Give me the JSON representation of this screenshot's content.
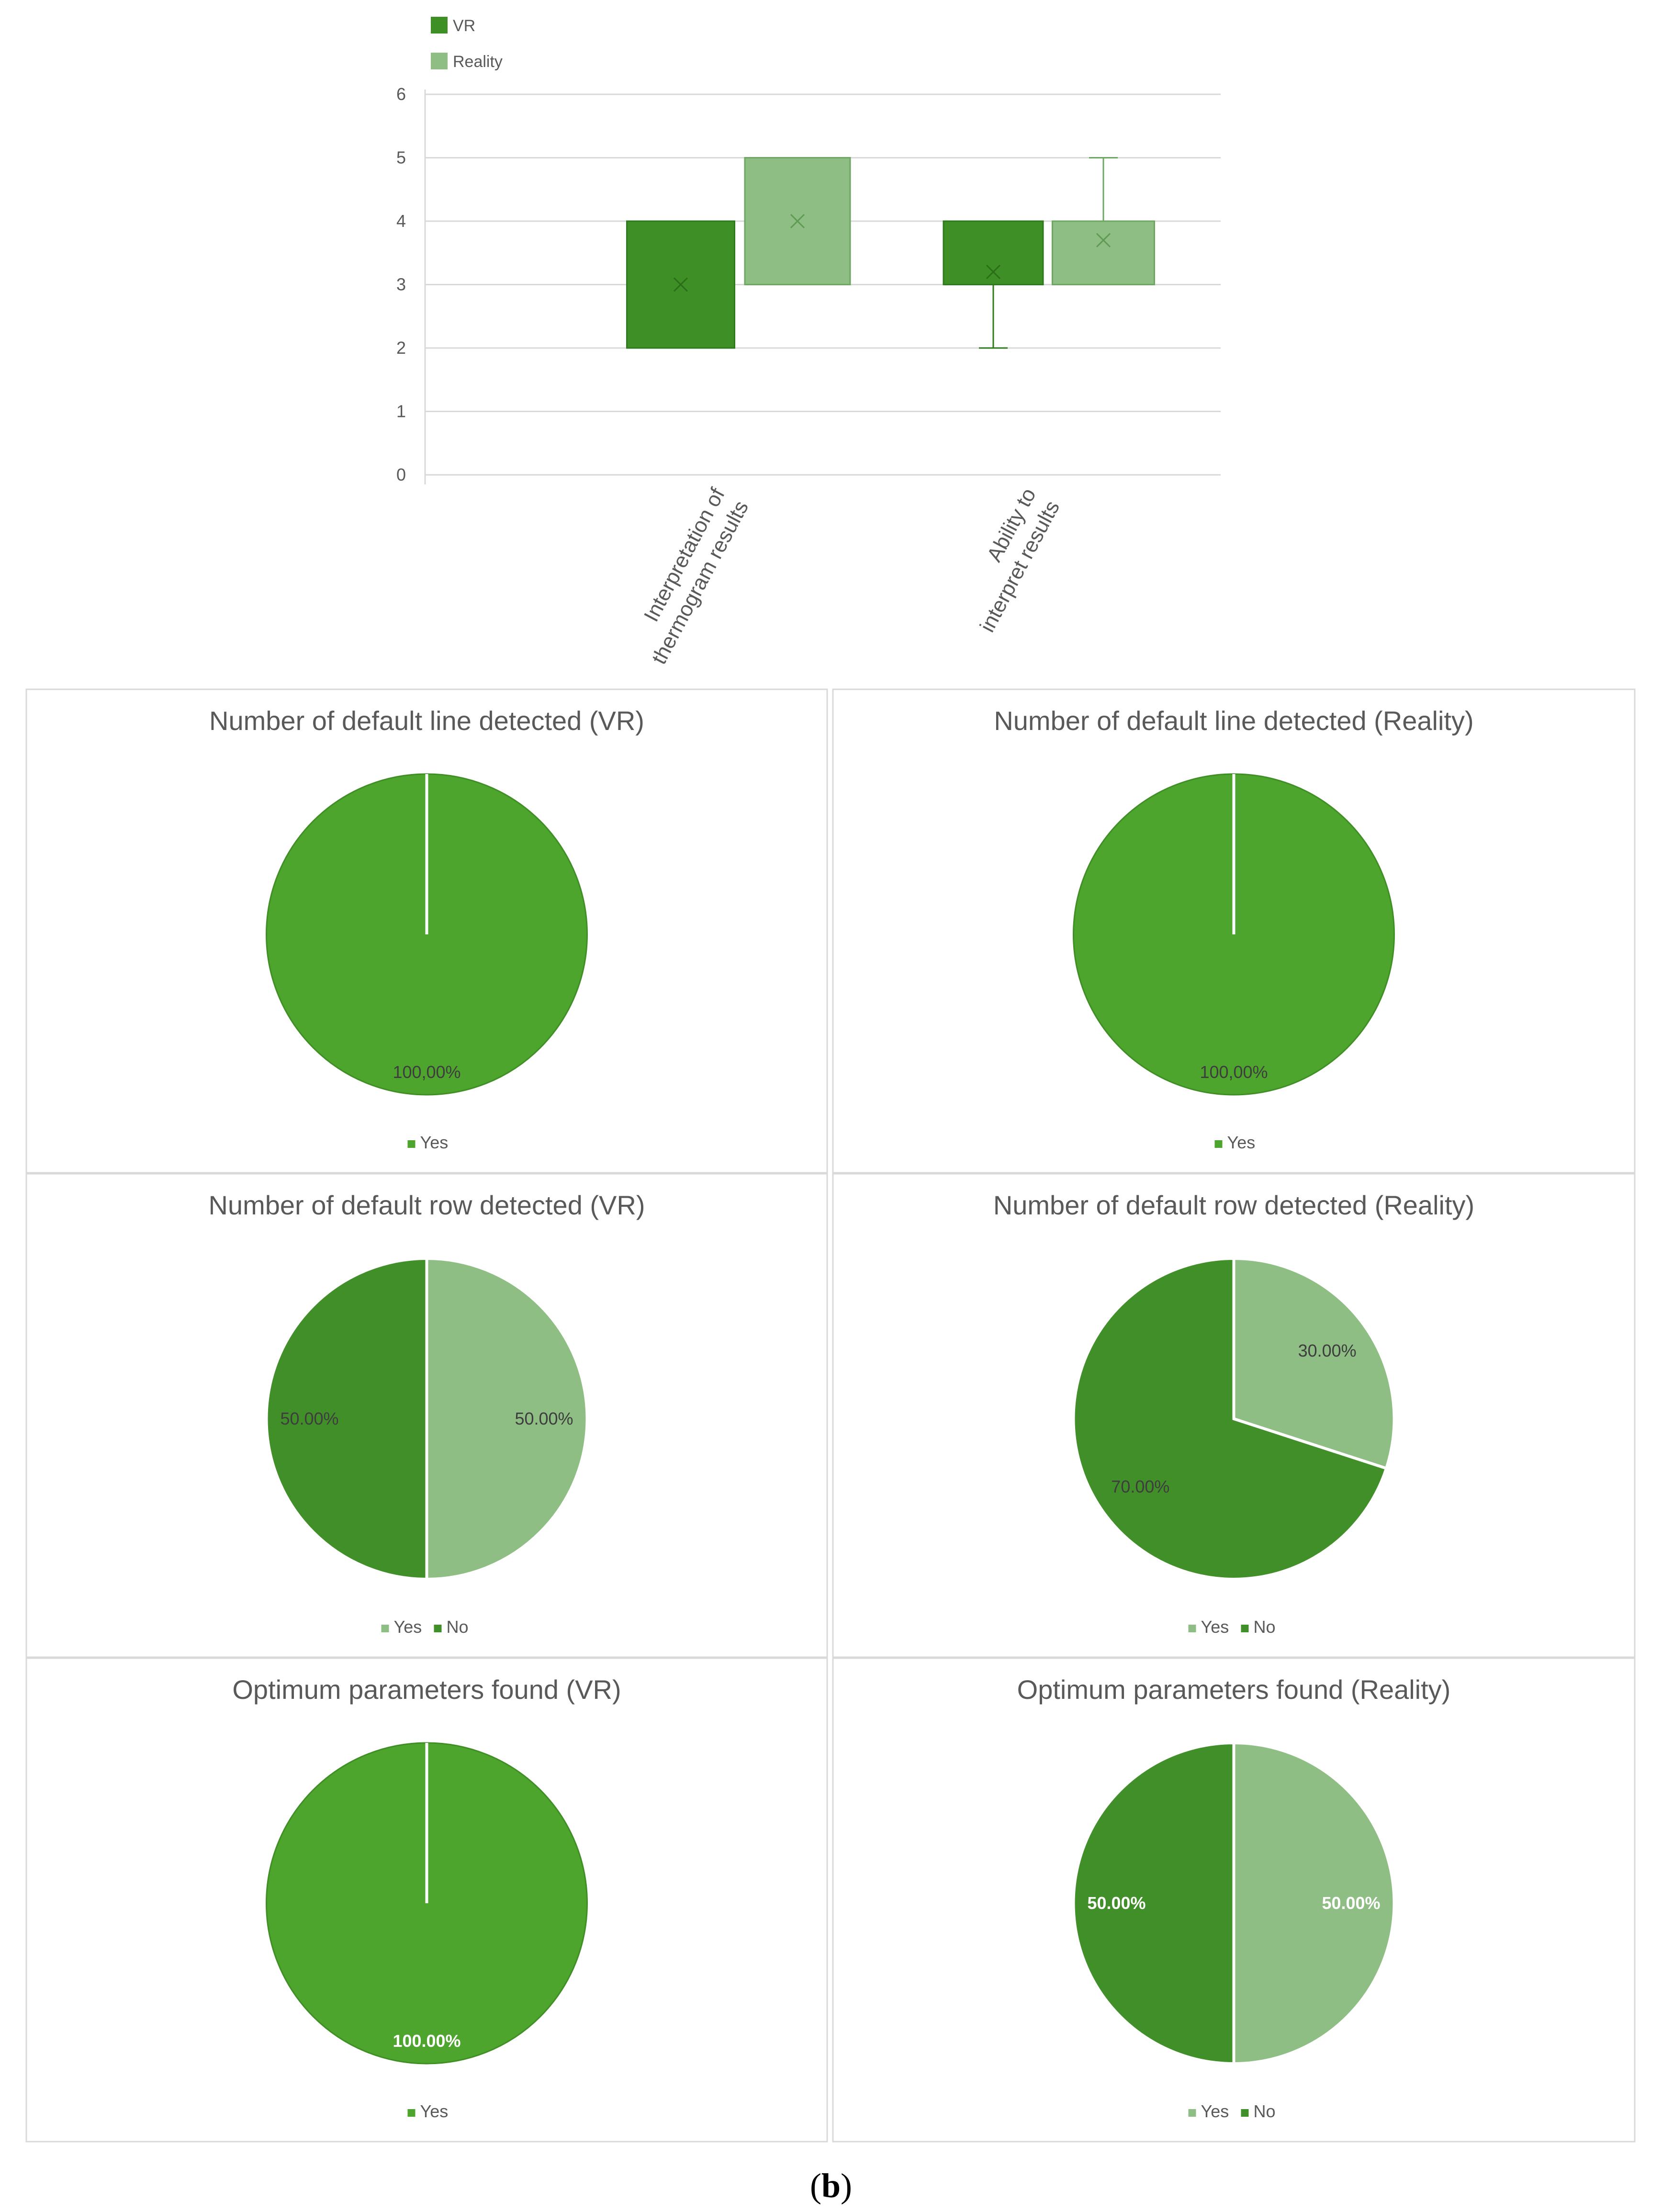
{
  "chart_data": [
    {
      "type": "box",
      "title": "",
      "xlabel": "",
      "ylabel": "",
      "ylim": [
        0,
        6
      ],
      "yticks": [
        0,
        1,
        2,
        3,
        4,
        5,
        6
      ],
      "grid": true,
      "legend_position": "top-left",
      "categories": [
        "Interpretation of\nthermogram results",
        "Ability to\ninterpret results"
      ],
      "series": [
        {
          "name": "VR",
          "color": "#3f8f27",
          "boxes": [
            {
              "min": 2,
              "q1": 2,
              "median": 3,
              "q3": 4,
              "max": 4,
              "mean": 3
            },
            {
              "min": 2,
              "q1": 3,
              "median": 3,
              "q3": 4,
              "max": 4,
              "mean": 3.2
            }
          ]
        },
        {
          "name": "Reality",
          "color": "#8fbe85",
          "boxes": [
            {
              "min": 3,
              "q1": 3,
              "median": 4,
              "q3": 5,
              "max": 5,
              "mean": 4
            },
            {
              "min": 3,
              "q1": 3,
              "median": 4,
              "q3": 4,
              "max": 5,
              "mean": 3.7
            }
          ]
        }
      ]
    },
    {
      "type": "pie",
      "title": "Number of default line detected (VR)",
      "slices": [
        {
          "label": "Yes",
          "value": 100,
          "display": "100,00%",
          "color": "#4ea52e"
        }
      ],
      "legend": [
        "Yes"
      ]
    },
    {
      "type": "pie",
      "title": "Number of default line detected (Reality)",
      "slices": [
        {
          "label": "Yes",
          "value": 100,
          "display": "100,00%",
          "color": "#4ea52e"
        }
      ],
      "legend": [
        "Yes"
      ]
    },
    {
      "type": "pie",
      "title": "Number of default row detected (VR)",
      "slices": [
        {
          "label": "Yes",
          "value": 50,
          "display": "50.00%",
          "color": "#8fbe85"
        },
        {
          "label": "No",
          "value": 50,
          "display": "50.00%",
          "color": "#418f28"
        }
      ],
      "legend": [
        "Yes",
        "No"
      ]
    },
    {
      "type": "pie",
      "title": "Number of default row detected (Reality)",
      "slices": [
        {
          "label": "Yes",
          "value": 30,
          "display": "30.00%",
          "color": "#8fbe85"
        },
        {
          "label": "No",
          "value": 70,
          "display": "70.00%",
          "color": "#418f28"
        }
      ],
      "legend": [
        "Yes",
        "No"
      ]
    },
    {
      "type": "pie",
      "title": "Optimum parameters found (VR)",
      "slices": [
        {
          "label": "Yes",
          "value": 100,
          "display": "100.00%",
          "color": "#4ea52e"
        }
      ],
      "legend": [
        "Yes"
      ]
    },
    {
      "type": "pie",
      "title": "Optimum parameters found (Reality)",
      "slices": [
        {
          "label": "Yes",
          "value": 50,
          "display": "50.00%",
          "color": "#8fbe85"
        },
        {
          "label": "No",
          "value": 50,
          "display": "50.00%",
          "color": "#418f28"
        }
      ],
      "legend": [
        "Yes",
        "No"
      ]
    }
  ],
  "caption": {
    "open": "(",
    "letter": "b",
    "close": ")"
  }
}
